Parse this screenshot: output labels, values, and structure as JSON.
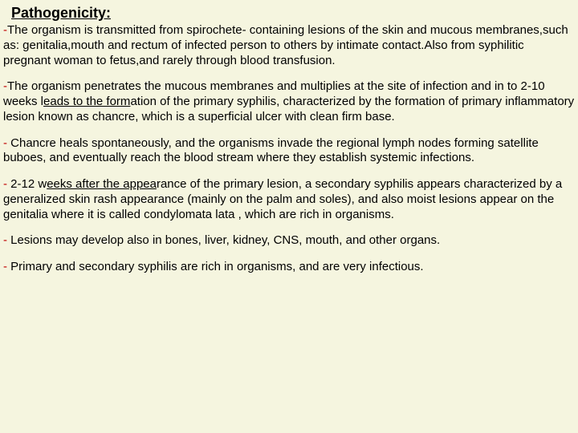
{
  "title": "Pathogenicity:",
  "colors": {
    "background": "#f5f5df",
    "dash": "#c00000",
    "text": "#000000"
  },
  "font": {
    "family": "Comic Sans MS",
    "title_size": 18,
    "body_size": 15
  },
  "paragraphs": [
    {
      "dash": "-",
      "pre": "The organism is transmitted from spirochete- containing lesions of the skin and mucous membranes,such as: genitalia,mouth and rectum of infected person to others by intimate contact.Also from syphilitic pregnant woman to fetus,and rarely through blood transfusion.",
      "underline": "",
      "post": ""
    },
    {
      "dash": "-",
      "pre": "The organism penetrates the mucous membranes and multiplies at the site of infection and in to 2-10 weeks l",
      "underline": "eads to the form",
      "post": "ation of the primary syphilis, characterized by the formation of primary inflammatory lesion known as chancre, which is a superficial ulcer with clean firm base."
    },
    {
      "dash": "-",
      "pre": " Chancre heals spontaneously, and the organisms invade the regional lymph nodes forming satellite buboes, and eventually reach the blood stream where they establish systemic infections.",
      "underline": "",
      "post": ""
    },
    {
      "dash": "-",
      "pre": " 2-12 w",
      "underline": "eeks after the appea",
      "post": "rance of the primary lesion, a secondary syphilis appears characterized by a generalized skin rash appearance (mainly on the palm and soles), and also moist lesions appear on the genitalia where it is called condylomata lata , which are rich in organisms."
    },
    {
      "dash": "-",
      "pre": " Lesions may develop also in bones, liver, kidney, CNS, mouth, and other organs.",
      "underline": "",
      "post": ""
    },
    {
      "dash": "-",
      "pre": " Primary and secondary syphilis are rich in organisms, and are very infectious.",
      "underline": "",
      "post": ""
    }
  ]
}
